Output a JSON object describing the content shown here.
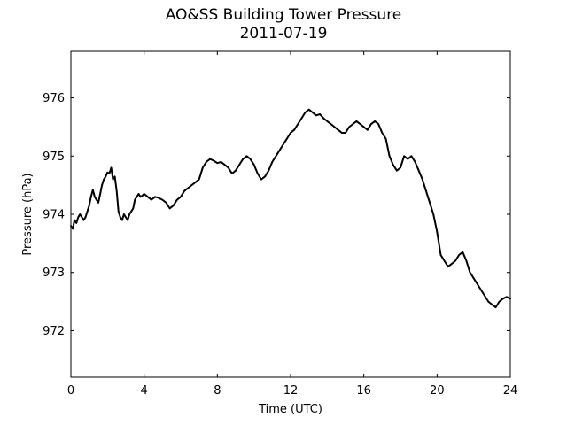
{
  "chart_data": {
    "type": "line",
    "title": "AO&SS Building Tower Pressure",
    "subtitle": "2011-07-19",
    "xlabel": "Time (UTC)",
    "ylabel": "Pressure (hPa)",
    "xlim": [
      0,
      24
    ],
    "ylim": [
      971.2,
      976.8
    ],
    "xticks": [
      0,
      4,
      8,
      12,
      16,
      20,
      24
    ],
    "yticks": [
      972,
      973,
      974,
      975,
      976
    ],
    "grid": false,
    "series": [
      {
        "color": "#000000",
        "x": [
          0,
          0.1,
          0.2,
          0.3,
          0.4,
          0.5,
          0.6,
          0.7,
          0.8,
          0.9,
          1.0,
          1.1,
          1.2,
          1.3,
          1.4,
          1.5,
          1.6,
          1.7,
          1.8,
          1.9,
          2.0,
          2.1,
          2.2,
          2.3,
          2.4,
          2.5,
          2.6,
          2.7,
          2.8,
          2.9,
          3.0,
          3.1,
          3.2,
          3.3,
          3.4,
          3.5,
          3.6,
          3.7,
          3.8,
          3.9,
          4.0,
          4.2,
          4.4,
          4.6,
          4.8,
          5.0,
          5.2,
          5.4,
          5.6,
          5.8,
          6.0,
          6.2,
          6.4,
          6.6,
          6.8,
          7.0,
          7.2,
          7.4,
          7.6,
          7.8,
          8.0,
          8.2,
          8.4,
          8.6,
          8.8,
          9.0,
          9.2,
          9.4,
          9.6,
          9.8,
          10.0,
          10.2,
          10.4,
          10.6,
          10.8,
          11.0,
          11.2,
          11.4,
          11.6,
          11.8,
          12.0,
          12.2,
          12.4,
          12.6,
          12.8,
          13.0,
          13.2,
          13.4,
          13.6,
          13.8,
          14.0,
          14.2,
          14.4,
          14.6,
          14.8,
          15.0,
          15.2,
          15.4,
          15.6,
          15.8,
          16.0,
          16.2,
          16.4,
          16.6,
          16.8,
          17.0,
          17.2,
          17.4,
          17.6,
          17.8,
          18.0,
          18.2,
          18.4,
          18.6,
          18.8,
          19.0,
          19.2,
          19.4,
          19.6,
          19.8,
          20.0,
          20.2,
          20.4,
          20.6,
          20.8,
          21.0,
          21.2,
          21.4,
          21.6,
          21.8,
          22.0,
          22.2,
          22.4,
          22.6,
          22.8,
          23.0,
          23.2,
          23.4,
          23.6,
          23.8,
          24.0
        ],
        "y": [
          973.8,
          973.75,
          973.9,
          973.85,
          973.95,
          974.0,
          973.95,
          973.9,
          973.95,
          974.05,
          974.15,
          974.3,
          974.42,
          974.3,
          974.25,
          974.2,
          974.35,
          974.5,
          974.6,
          974.65,
          974.72,
          974.7,
          974.8,
          974.6,
          974.65,
          974.4,
          974.05,
          973.95,
          973.9,
          974.0,
          973.95,
          973.9,
          974.0,
          974.05,
          974.1,
          974.25,
          974.3,
          974.35,
          974.3,
          974.32,
          974.35,
          974.3,
          974.25,
          974.3,
          974.28,
          974.25,
          974.2,
          974.1,
          974.15,
          974.25,
          974.3,
          974.4,
          974.45,
          974.5,
          974.55,
          974.6,
          974.8,
          974.9,
          974.95,
          974.92,
          974.88,
          974.9,
          974.85,
          974.8,
          974.7,
          974.75,
          974.85,
          974.95,
          975.0,
          974.95,
          974.85,
          974.7,
          974.6,
          974.65,
          974.75,
          974.9,
          975.0,
          975.1,
          975.2,
          975.3,
          975.4,
          975.45,
          975.55,
          975.65,
          975.75,
          975.8,
          975.75,
          975.7,
          975.72,
          975.65,
          975.6,
          975.55,
          975.5,
          975.45,
          975.4,
          975.4,
          975.5,
          975.55,
          975.6,
          975.55,
          975.5,
          975.45,
          975.55,
          975.6,
          975.55,
          975.4,
          975.3,
          975.0,
          974.85,
          974.75,
          974.8,
          975.0,
          974.95,
          975.0,
          974.9,
          974.75,
          974.6,
          974.4,
          974.2,
          974.0,
          973.7,
          973.3,
          973.2,
          973.1,
          973.15,
          973.2,
          973.3,
          973.35,
          973.2,
          973.0,
          972.9,
          972.8,
          972.7,
          972.6,
          972.5,
          972.45,
          972.4,
          972.5,
          972.55,
          972.58,
          972.55
        ]
      }
    ]
  }
}
